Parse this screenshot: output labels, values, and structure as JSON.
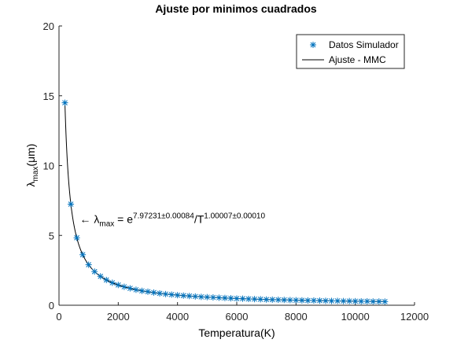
{
  "chart_data": {
    "type": "scatter",
    "title": "Ajuste por minimos cuadrados",
    "xlabel": "Temperatura(K)",
    "ylabel": {
      "main": "λ",
      "sub": "max",
      "unit": "(μm)"
    },
    "xlim": [
      0,
      12000
    ],
    "ylim": [
      0,
      20
    ],
    "xticks": [
      0,
      2000,
      4000,
      6000,
      8000,
      10000,
      12000
    ],
    "yticks": [
      0,
      5,
      10,
      15,
      20
    ],
    "grid": false,
    "legend_position": "top-right",
    "series": [
      {
        "name": "Datos Simulador",
        "kind": "markers",
        "marker": "asterisk",
        "color": "#0072BD",
        "x": [
          200,
          400,
          600,
          800,
          1000,
          1200,
          1400,
          1600,
          1800,
          2000,
          2200,
          2400,
          2600,
          2800,
          3000,
          3200,
          3400,
          3600,
          3800,
          4000,
          4200,
          4400,
          4600,
          4800,
          5000,
          5200,
          5400,
          5600,
          5800,
          6000,
          6200,
          6400,
          6600,
          6800,
          7000,
          7200,
          7400,
          7600,
          7800,
          8000,
          8200,
          8400,
          8600,
          8800,
          9000,
          9200,
          9400,
          9600,
          9800,
          10000,
          10200,
          10400,
          10600,
          10800,
          11000
        ],
        "y": [
          14.5,
          7.24,
          4.83,
          3.62,
          2.9,
          2.41,
          2.07,
          1.81,
          1.61,
          1.45,
          1.32,
          1.21,
          1.11,
          1.03,
          0.97,
          0.91,
          0.85,
          0.8,
          0.76,
          0.72,
          0.69,
          0.66,
          0.63,
          0.6,
          0.58,
          0.56,
          0.54,
          0.52,
          0.5,
          0.48,
          0.47,
          0.45,
          0.44,
          0.43,
          0.41,
          0.4,
          0.39,
          0.38,
          0.37,
          0.36,
          0.35,
          0.34,
          0.34,
          0.33,
          0.32,
          0.31,
          0.31,
          0.3,
          0.3,
          0.29,
          0.28,
          0.28,
          0.27,
          0.27,
          0.26
        ]
      },
      {
        "name": "Ajuste - MMC",
        "kind": "line",
        "color": "#000000",
        "fit": {
          "coef_log": 7.97231,
          "exponent": 1.00007
        },
        "x_range": [
          200,
          11000
        ]
      }
    ],
    "annotation": {
      "arrow": "←",
      "lambda": "λ",
      "sub": "max",
      "eq": " = e",
      "sup1": "7.97231±0.00084",
      "mid": "/T",
      "sup2": "1.00007±0.00010",
      "x": 700,
      "y": 5.9
    }
  }
}
